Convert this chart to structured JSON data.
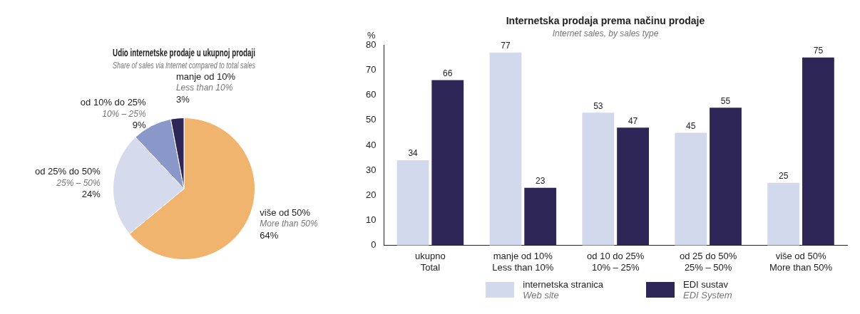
{
  "chart_data": [
    {
      "type": "pie",
      "title": "Udio internetske prodaje u ukupnoj prodaji",
      "subtitle": "Share of sales via internet compared to total sales",
      "categories": [
        "više od 50%\nMore than 50%",
        "od 25% do 50%\n25% – 50%",
        "od 10% do 25%\n10% – 25%",
        "manje od 10%\nLess than 10%"
      ],
      "values": [
        64,
        24,
        9,
        3
      ],
      "value_labels": [
        "64%",
        "24%",
        "9%",
        "3%"
      ],
      "colors": [
        "#f0b46f",
        "#d6daed",
        "#8a98c9",
        "#2e2656"
      ]
    },
    {
      "type": "bar",
      "title": "Internetska prodaja prema načinu prodaje",
      "subtitle": "Internet sales, by sales type",
      "ylabel": "%",
      "categories": [
        "ukupno\nTotal",
        "manje od 10%\nLess than 10%",
        "od 10 do 25%\n10% – 25%",
        "od 25 do 50%\n25% – 50%",
        "više od 50%\nMore than 50%"
      ],
      "series": [
        {
          "name": "internetska stranica\nWeb site",
          "color": "#d3d9ec",
          "values": [
            34,
            77,
            53,
            45,
            25
          ]
        },
        {
          "name": "EDI sustav\nEDI System",
          "color": "#2e2656",
          "values": [
            66,
            23,
            47,
            55,
            75
          ]
        }
      ],
      "ylim": [
        0,
        80
      ],
      "yticks": [
        0,
        10,
        20,
        30,
        40,
        50,
        60,
        70,
        80
      ],
      "grid": false,
      "data_labels": true,
      "legend": "bottom"
    }
  ]
}
